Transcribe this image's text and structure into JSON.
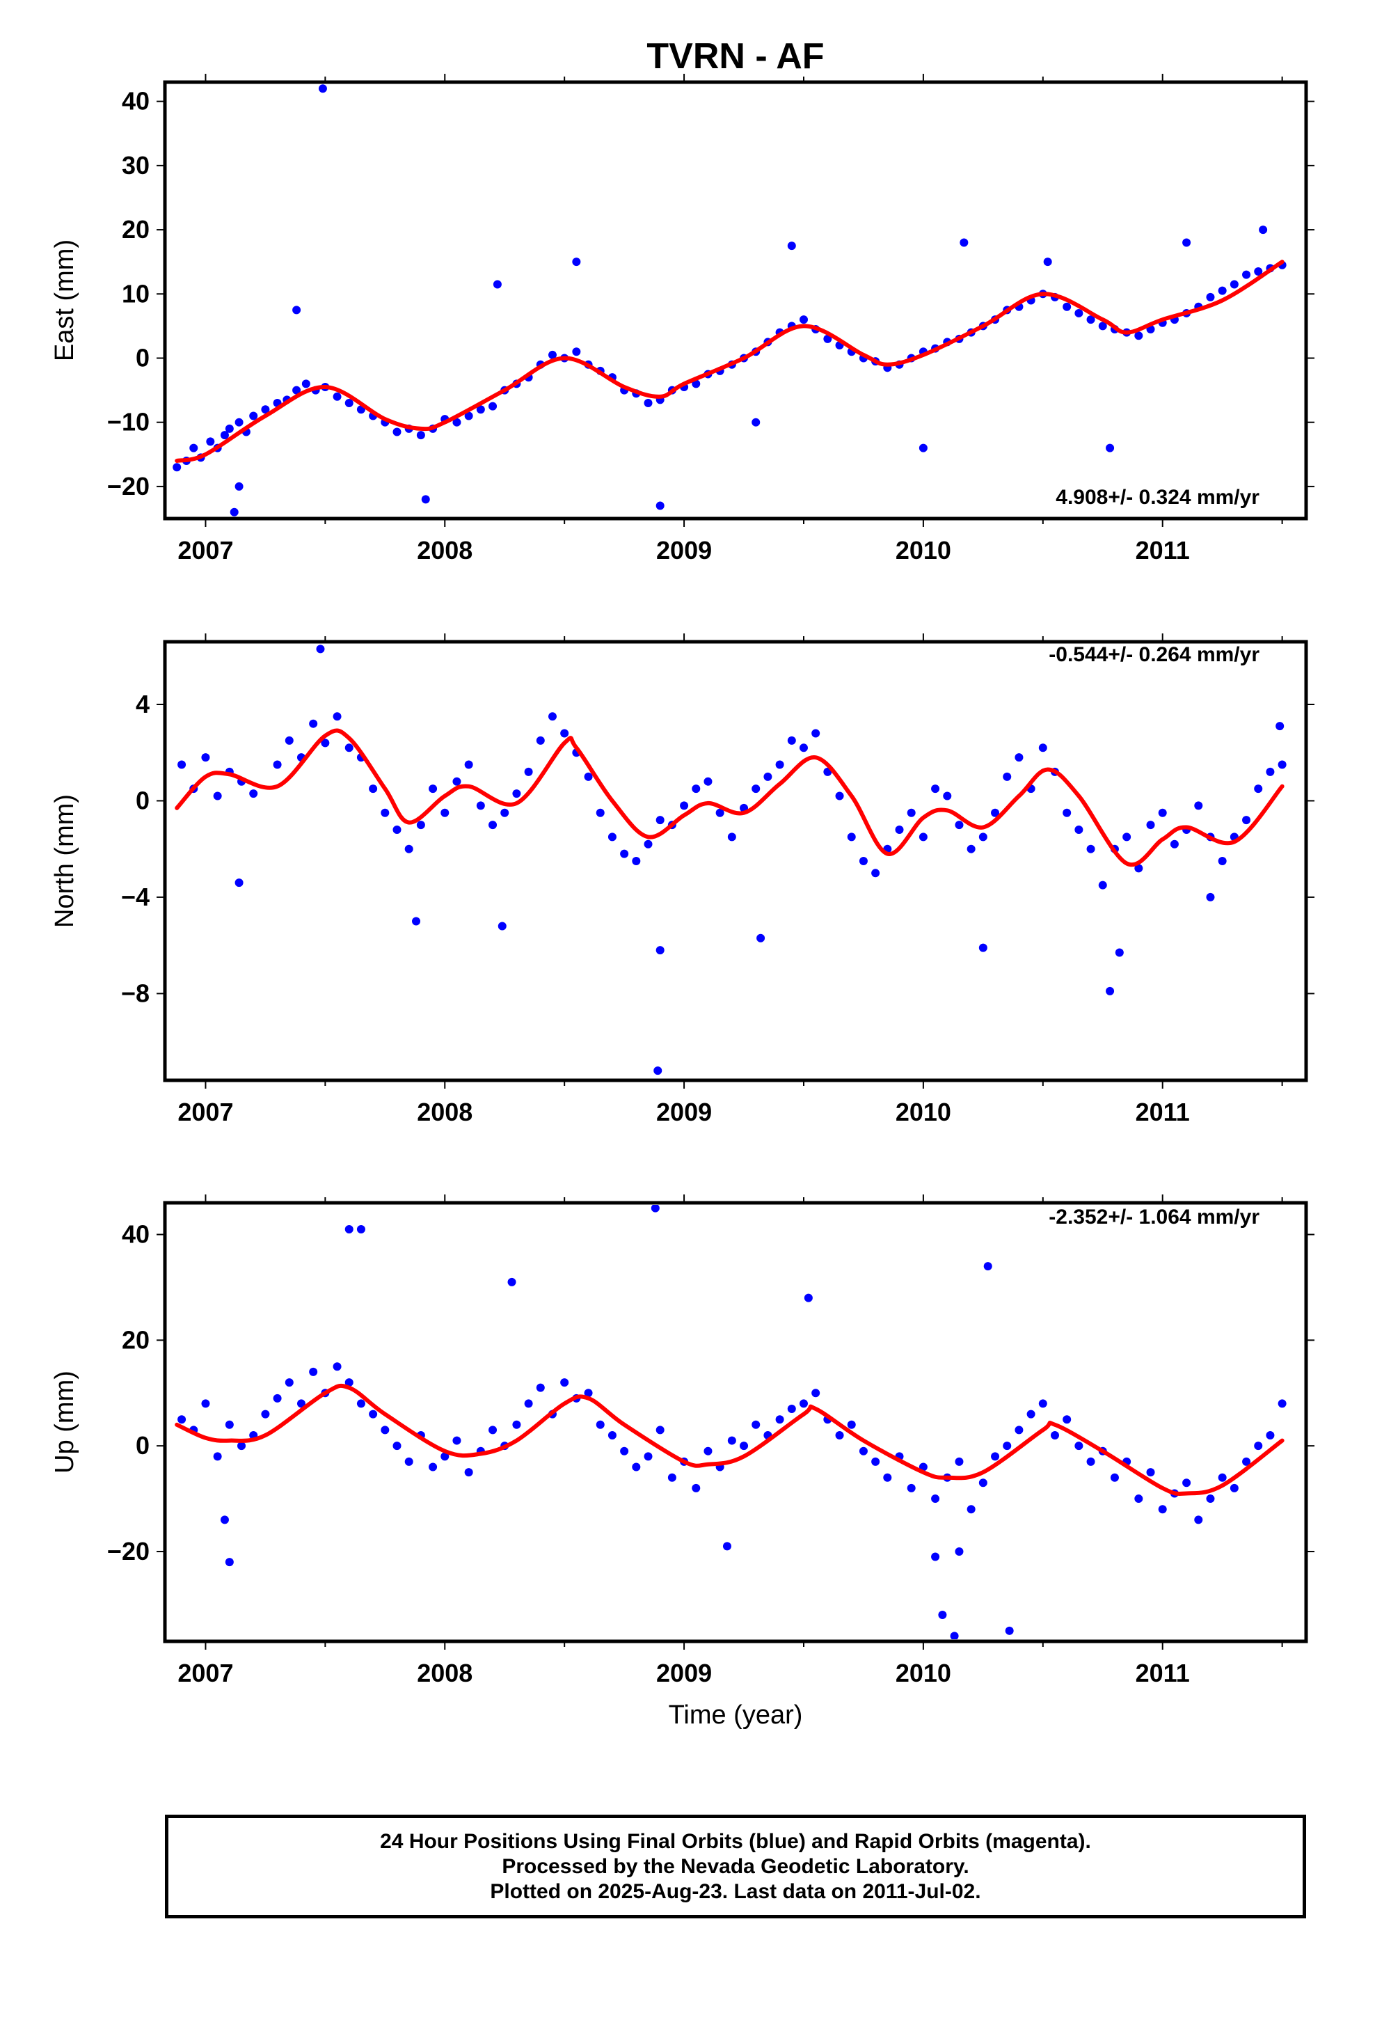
{
  "title": "TVRN - AF",
  "colors": {
    "data_points": "#0000ff",
    "model_line": "#ff0000",
    "frame": "#000000"
  },
  "footer": {
    "line1": "24 Hour Positions Using Final Orbits (blue) and Rapid Orbits (magenta).",
    "line2": "Processed by the Nevada Geodetic Laboratory.",
    "line3": "Plotted on 2025-Aug-23. Last data on 2011-Jul-02."
  },
  "chart_data": [
    {
      "type": "scatter",
      "ylabel": "East (mm)",
      "rate_label": "4.908+/- 0.324 mm/yr",
      "xlim": [
        2006.83,
        2011.6
      ],
      "ylim": [
        -25,
        43
      ],
      "x_ticks": [
        "2007",
        "2008",
        "2009",
        "2010",
        "2011"
      ],
      "y_ticks": [
        40,
        30,
        20,
        10,
        0,
        -10,
        -20
      ],
      "y_tick_labels": [
        "40",
        "30",
        "20",
        "10",
        "0",
        "−10",
        "−20"
      ],
      "model": {
        "x": [
          2006.88,
          2007.0,
          2007.25,
          2007.5,
          2007.75,
          2007.9,
          2008.0,
          2008.25,
          2008.5,
          2008.75,
          2008.9,
          2009.0,
          2009.25,
          2009.5,
          2009.75,
          2009.85,
          2010.0,
          2010.25,
          2010.5,
          2010.75,
          2010.85,
          2011.0,
          2011.25,
          2011.5
        ],
        "y": [
          -16,
          -15,
          -9,
          -4.5,
          -9.5,
          -11,
          -10,
          -5,
          0,
          -4.5,
          -6,
          -4,
          0,
          5,
          0.5,
          -1,
          0.5,
          5,
          10,
          6,
          4,
          6,
          9,
          15
        ]
      },
      "points": {
        "x": [
          2006.88,
          2006.92,
          2006.95,
          2006.98,
          2007.02,
          2007.05,
          2007.08,
          2007.1,
          2007.14,
          2007.17,
          2007.2,
          2007.25,
          2007.3,
          2007.34,
          2007.38,
          2007.42,
          2007.46,
          2007.5,
          2007.55,
          2007.6,
          2007.65,
          2007.7,
          2007.75,
          2007.8,
          2007.85,
          2007.9,
          2007.95,
          2008.0,
          2008.05,
          2008.1,
          2008.15,
          2008.2,
          2008.25,
          2008.3,
          2008.35,
          2008.4,
          2008.45,
          2008.5,
          2008.55,
          2008.6,
          2008.65,
          2008.7,
          2008.75,
          2008.8,
          2008.85,
          2008.9,
          2008.95,
          2009.0,
          2009.05,
          2009.1,
          2009.15,
          2009.2,
          2009.25,
          2009.3,
          2009.35,
          2009.4,
          2009.45,
          2009.5,
          2009.55,
          2009.6,
          2009.65,
          2009.7,
          2009.75,
          2009.8,
          2009.85,
          2009.9,
          2009.95,
          2010.0,
          2010.05,
          2010.1,
          2010.15,
          2010.2,
          2010.25,
          2010.3,
          2010.35,
          2010.4,
          2010.45,
          2010.5,
          2010.55,
          2010.6,
          2010.65,
          2010.7,
          2010.75,
          2010.8,
          2010.85,
          2010.9,
          2010.95,
          2011.0,
          2011.05,
          2011.1,
          2011.15,
          2011.2,
          2011.25,
          2011.3,
          2011.35,
          2011.4,
          2011.45,
          2011.5,
          2007.49,
          2007.14,
          2007.12,
          2007.38,
          2007.92,
          2008.22,
          2008.55,
          2008.9,
          2009.45,
          2009.3,
          2010.17,
          2010.0,
          2010.52,
          2010.78,
          2011.1,
          2011.42
        ],
        "y": [
          -17,
          -16,
          -14,
          -15.5,
          -13,
          -14,
          -12,
          -11,
          -10,
          -11.5,
          -9,
          -8,
          -7,
          -6.5,
          -5,
          -4,
          -5,
          -4.5,
          -6,
          -7,
          -8,
          -9,
          -10,
          -11.5,
          -11,
          -12,
          -11,
          -9.5,
          -10,
          -9,
          -8,
          -7.5,
          -5,
          -4,
          -3,
          -1,
          0.5,
          0,
          1,
          -1,
          -2,
          -3,
          -5,
          -5.5,
          -7,
          -6.5,
          -5,
          -4.5,
          -4,
          -2.5,
          -2,
          -1,
          0,
          1,
          2.5,
          4,
          5,
          6,
          4.5,
          3,
          2,
          1,
          0,
          -0.5,
          -1.5,
          -1,
          0,
          1,
          1.5,
          2.5,
          3,
          4,
          5,
          6,
          7.5,
          8,
          9,
          10,
          9.5,
          8,
          7,
          6,
          5,
          4.5,
          4,
          3.5,
          4.5,
          5.5,
          6,
          7,
          8,
          9.5,
          10.5,
          11.5,
          13,
          13.5,
          14,
          14.5,
          42,
          -20,
          -24,
          7.5,
          -22,
          11.5,
          15,
          -23,
          17.5,
          -10,
          18,
          -14,
          15,
          -14,
          18,
          20
        ]
      }
    },
    {
      "type": "scatter",
      "ylabel": "North (mm)",
      "rate_label": "-0.544+/- 0.264 mm/yr",
      "xlim": [
        2006.83,
        2011.6
      ],
      "ylim": [
        -11.6,
        6.6
      ],
      "x_ticks": [
        "2007",
        "2008",
        "2009",
        "2010",
        "2011"
      ],
      "y_ticks": [
        4,
        0,
        -4,
        -8
      ],
      "y_tick_labels": [
        "4",
        "0",
        "−4",
        "−8"
      ],
      "model": {
        "x": [
          2006.88,
          2007.0,
          2007.1,
          2007.3,
          2007.5,
          2007.6,
          2007.75,
          2007.85,
          2008.0,
          2008.1,
          2008.3,
          2008.5,
          2008.55,
          2008.7,
          2008.85,
          2009.0,
          2009.1,
          2009.25,
          2009.4,
          2009.55,
          2009.7,
          2009.85,
          2010.0,
          2010.1,
          2010.25,
          2010.4,
          2010.52,
          2010.65,
          2010.85,
          2011.0,
          2011.1,
          2011.3,
          2011.5
        ],
        "y": [
          -0.3,
          1,
          1.1,
          0.6,
          2.7,
          2.6,
          0.5,
          -0.9,
          0.2,
          0.6,
          -0.1,
          2.4,
          2.2,
          0,
          -1.5,
          -0.6,
          -0.1,
          -0.5,
          0.7,
          1.8,
          0.2,
          -2.2,
          -0.7,
          -0.4,
          -1.1,
          0.2,
          1.3,
          0.2,
          -2.6,
          -1.6,
          -1.1,
          -1.7,
          0.6
        ]
      },
      "points": {
        "x": [
          2006.9,
          2006.95,
          2007.0,
          2007.05,
          2007.1,
          2007.15,
          2007.2,
          2007.3,
          2007.35,
          2007.4,
          2007.45,
          2007.5,
          2007.55,
          2007.6,
          2007.65,
          2007.7,
          2007.75,
          2007.8,
          2007.85,
          2007.9,
          2007.95,
          2008.0,
          2008.05,
          2008.1,
          2008.15,
          2008.2,
          2008.25,
          2008.3,
          2008.35,
          2008.4,
          2008.45,
          2008.5,
          2008.55,
          2008.6,
          2008.65,
          2008.7,
          2008.75,
          2008.8,
          2008.85,
          2008.9,
          2008.95,
          2009.0,
          2009.05,
          2009.1,
          2009.15,
          2009.2,
          2009.25,
          2009.3,
          2009.35,
          2009.4,
          2009.45,
          2009.5,
          2009.55,
          2009.6,
          2009.65,
          2009.7,
          2009.75,
          2009.8,
          2009.85,
          2009.9,
          2009.95,
          2010.0,
          2010.05,
          2010.1,
          2010.15,
          2010.2,
          2010.25,
          2010.3,
          2010.35,
          2010.4,
          2010.45,
          2010.5,
          2010.55,
          2010.6,
          2010.65,
          2010.7,
          2010.75,
          2010.8,
          2010.85,
          2010.9,
          2010.95,
          2011.0,
          2011.05,
          2011.1,
          2011.15,
          2011.2,
          2011.25,
          2011.3,
          2011.35,
          2011.4,
          2011.45,
          2011.5,
          2007.48,
          2007.14,
          2007.88,
          2008.24,
          2008.9,
          2008.89,
          2009.32,
          2010.25,
          2010.78,
          2010.82,
          2011.2,
          2011.49
        ],
        "y": [
          1.5,
          0.5,
          1.8,
          0.2,
          1.2,
          0.8,
          0.3,
          1.5,
          2.5,
          1.8,
          3.2,
          2.4,
          3.5,
          2.2,
          1.8,
          0.5,
          -0.5,
          -1.2,
          -2,
          -1,
          0.5,
          -0.5,
          0.8,
          1.5,
          -0.2,
          -1,
          -0.5,
          0.3,
          1.2,
          2.5,
          3.5,
          2.8,
          2,
          1,
          -0.5,
          -1.5,
          -2.2,
          -2.5,
          -1.8,
          -0.8,
          -1,
          -0.2,
          0.5,
          0.8,
          -0.5,
          -1.5,
          -0.3,
          0.5,
          1,
          1.5,
          2.5,
          2.2,
          2.8,
          1.2,
          0.2,
          -1.5,
          -2.5,
          -3,
          -2,
          -1.2,
          -0.5,
          -1.5,
          0.5,
          0.2,
          -1,
          -2,
          -1.5,
          -0.5,
          1,
          1.8,
          0.5,
          2.2,
          1.2,
          -0.5,
          -1.2,
          -2,
          -3.5,
          -2,
          -1.5,
          -2.8,
          -1,
          -0.5,
          -1.8,
          -1.2,
          -0.2,
          -1.5,
          -2.5,
          -1.5,
          -0.8,
          0.5,
          1.2,
          1.5,
          6.3,
          -3.4,
          -5,
          -5.2,
          -6.2,
          -11.2,
          -5.7,
          -6.1,
          -7.9,
          -6.3,
          -4,
          3.1
        ]
      }
    },
    {
      "type": "scatter",
      "ylabel": "Up (mm)",
      "xlabel": "Time (year)",
      "rate_label": "-2.352+/- 1.064 mm/yr",
      "xlim": [
        2006.83,
        2011.6
      ],
      "ylim": [
        -37,
        46
      ],
      "x_ticks": [
        "2007",
        "2008",
        "2009",
        "2010",
        "2011"
      ],
      "y_ticks": [
        40,
        20,
        0,
        -20
      ],
      "y_tick_labels": [
        "40",
        "20",
        "0",
        "−20"
      ],
      "model": {
        "x": [
          2006.88,
          2007.0,
          2007.1,
          2007.25,
          2007.5,
          2007.6,
          2007.75,
          2008.0,
          2008.15,
          2008.3,
          2008.5,
          2008.6,
          2008.75,
          2009.0,
          2009.1,
          2009.25,
          2009.5,
          2009.55,
          2009.75,
          2010.0,
          2010.1,
          2010.25,
          2010.5,
          2010.55,
          2010.75,
          2011.0,
          2011.1,
          2011.25,
          2011.5
        ],
        "y": [
          4,
          1.5,
          1,
          2,
          10,
          11,
          6,
          -1,
          -1.5,
          1,
          8,
          9,
          4,
          -3,
          -3.5,
          -2,
          6,
          7,
          1,
          -5,
          -6,
          -5,
          3,
          4,
          -1,
          -8,
          -9,
          -7.5,
          1
        ]
      },
      "points": {
        "x": [
          2006.9,
          2006.95,
          2007.0,
          2007.05,
          2007.1,
          2007.15,
          2007.2,
          2007.25,
          2007.3,
          2007.35,
          2007.4,
          2007.45,
          2007.5,
          2007.55,
          2007.6,
          2007.65,
          2007.7,
          2007.75,
          2007.8,
          2007.85,
          2007.9,
          2007.95,
          2008.0,
          2008.05,
          2008.1,
          2008.15,
          2008.2,
          2008.25,
          2008.3,
          2008.35,
          2008.4,
          2008.45,
          2008.5,
          2008.55,
          2008.6,
          2008.65,
          2008.7,
          2008.75,
          2008.8,
          2008.85,
          2008.9,
          2008.95,
          2009.0,
          2009.05,
          2009.1,
          2009.15,
          2009.2,
          2009.25,
          2009.3,
          2009.35,
          2009.4,
          2009.45,
          2009.5,
          2009.55,
          2009.6,
          2009.65,
          2009.7,
          2009.75,
          2009.8,
          2009.85,
          2009.9,
          2009.95,
          2010.0,
          2010.05,
          2010.1,
          2010.15,
          2010.2,
          2010.25,
          2010.3,
          2010.35,
          2010.4,
          2010.45,
          2010.5,
          2010.55,
          2010.6,
          2010.65,
          2010.7,
          2010.75,
          2010.8,
          2010.85,
          2010.9,
          2010.95,
          2011.0,
          2011.05,
          2011.1,
          2011.15,
          2011.2,
          2011.25,
          2011.3,
          2011.35,
          2011.4,
          2011.45,
          2011.5,
          2007.6,
          2007.65,
          2008.88,
          2009.18,
          2009.52,
          2010.05,
          2010.08,
          2010.13,
          2010.27,
          2010.36,
          2007.1,
          2007.08,
          2008.28,
          2010.15
        ],
        "y": [
          5,
          3,
          8,
          -2,
          4,
          0,
          2,
          6,
          9,
          12,
          8,
          14,
          10,
          15,
          12,
          8,
          6,
          3,
          0,
          -3,
          2,
          -4,
          -2,
          1,
          -5,
          -1,
          3,
          0,
          4,
          8,
          11,
          6,
          12,
          9,
          10,
          4,
          2,
          -1,
          -4,
          -2,
          3,
          -6,
          -3,
          -8,
          -1,
          -4,
          1,
          0,
          4,
          2,
          5,
          7,
          8,
          10,
          5,
          2,
          4,
          -1,
          -3,
          -6,
          -2,
          -8,
          -4,
          -10,
          -6,
          -3,
          -12,
          -7,
          -2,
          0,
          3,
          6,
          8,
          2,
          5,
          0,
          -3,
          -1,
          -6,
          -3,
          -10,
          -5,
          -12,
          -9,
          -7,
          -14,
          -10,
          -6,
          -8,
          -3,
          0,
          2,
          8,
          41,
          41,
          45,
          -19,
          28,
          -21,
          -32,
          -36,
          34,
          -35,
          -22,
          -14,
          31,
          -20
        ]
      }
    }
  ]
}
